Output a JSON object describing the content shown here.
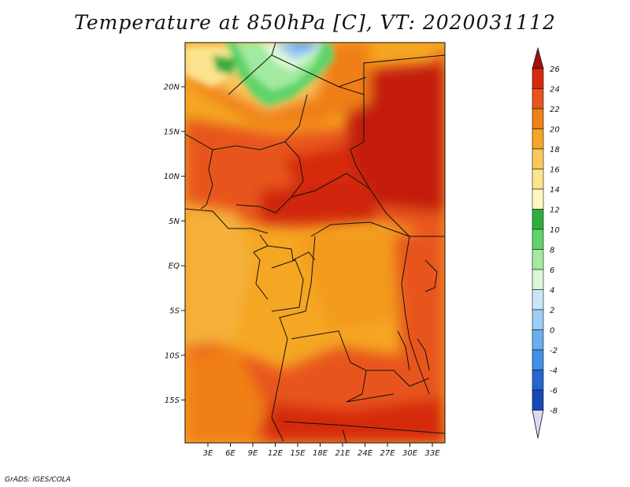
{
  "title": "Temperature at 850hPa [C], VT: 2020031112",
  "credit": "GrADS: IGES/COLA",
  "latitude_labels": [
    "20N",
    "15N",
    "10N",
    "5N",
    "EQ",
    "5S",
    "10S",
    "15S"
  ],
  "longitude_labels": [
    "3E",
    "6E",
    "9E",
    "12E",
    "15E",
    "18E",
    "21E",
    "24E",
    "27E",
    "30E",
    "33E"
  ],
  "colorbar": {
    "labels": [
      "26",
      "24",
      "22",
      "20",
      "18",
      "16",
      "14",
      "12",
      "10",
      "8",
      "6",
      "4",
      "2",
      "0",
      "-2",
      "-4",
      "-6",
      "-8"
    ],
    "colors": [
      "#a50f0f",
      "#d62a10",
      "#e8551d",
      "#f07f14",
      "#f5a623",
      "#f9c85a",
      "#fbe38f",
      "#fff6be",
      "#2fae3f",
      "#5fd36b",
      "#a2ea9f",
      "#d9f7d5",
      "#c8e6fa",
      "#9dcdf4",
      "#6aaeec",
      "#3f8fe6",
      "#2466d3",
      "#1747b5",
      "#0d2a8f",
      "#050c62",
      "#dcd9f3"
    ]
  }
}
